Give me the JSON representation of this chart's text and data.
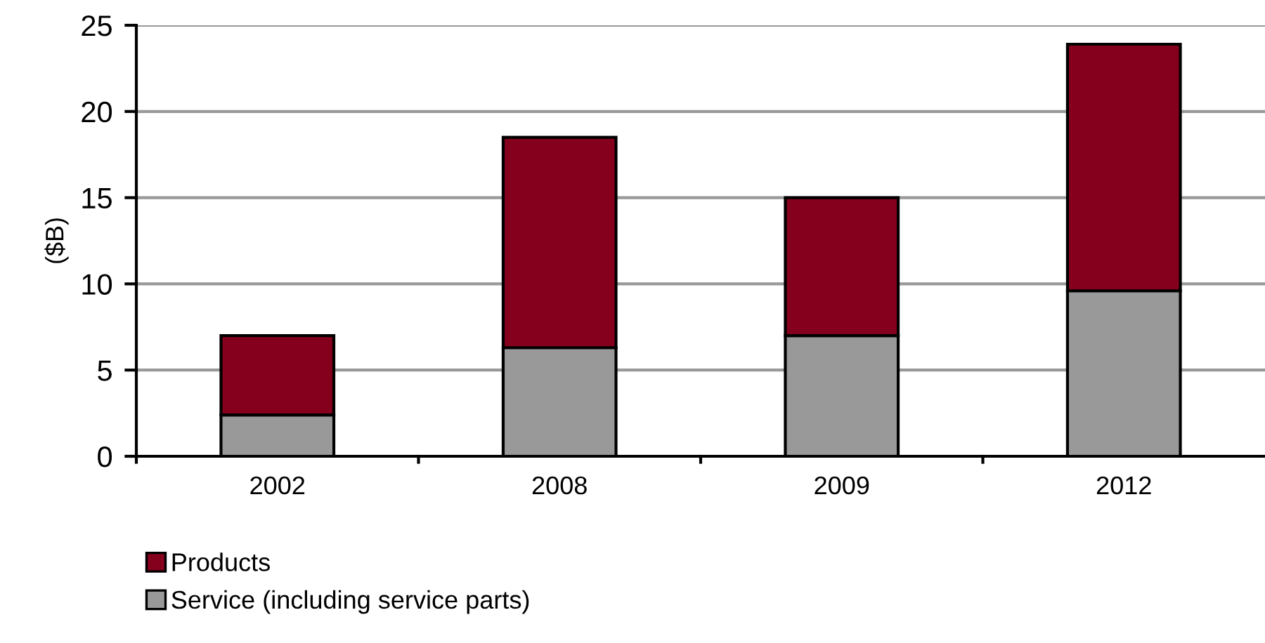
{
  "chart_data": {
    "type": "bar",
    "stacked": true,
    "ylabel": "($B)",
    "categories": [
      "2002",
      "2008",
      "2009",
      "2012"
    ],
    "series": [
      {
        "name": "Service (including service parts)",
        "color": "#999999",
        "values": [
          2.4,
          6.3,
          7.0,
          9.6
        ]
      },
      {
        "name": "Products",
        "color": "#84001c",
        "values": [
          4.6,
          12.2,
          8.0,
          14.3
        ]
      }
    ],
    "ylim": [
      0,
      25
    ],
    "yticks": [
      0,
      5,
      10,
      15,
      20,
      25
    ],
    "grid": "y",
    "legend": "bottom"
  }
}
